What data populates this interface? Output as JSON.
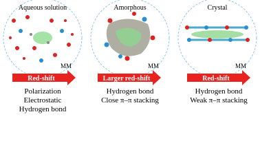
{
  "panels": [
    {
      "title": "Aqueous solution",
      "label": "MM",
      "shift": "Red-shift",
      "lines": [
        "Polarization",
        "Electrostatic",
        "Hydrogen bond"
      ]
    },
    {
      "title": "Amorphous",
      "label": "MM",
      "shift": "Larger red-shift",
      "lines": [
        "Hydrogen bond",
        "Close π–π stacking"
      ]
    },
    {
      "title": "Crystal",
      "label": "MM",
      "shift": "Red-shift",
      "lines": [
        "Hydrogen bond",
        "Weak π–π stacking"
      ]
    }
  ]
}
